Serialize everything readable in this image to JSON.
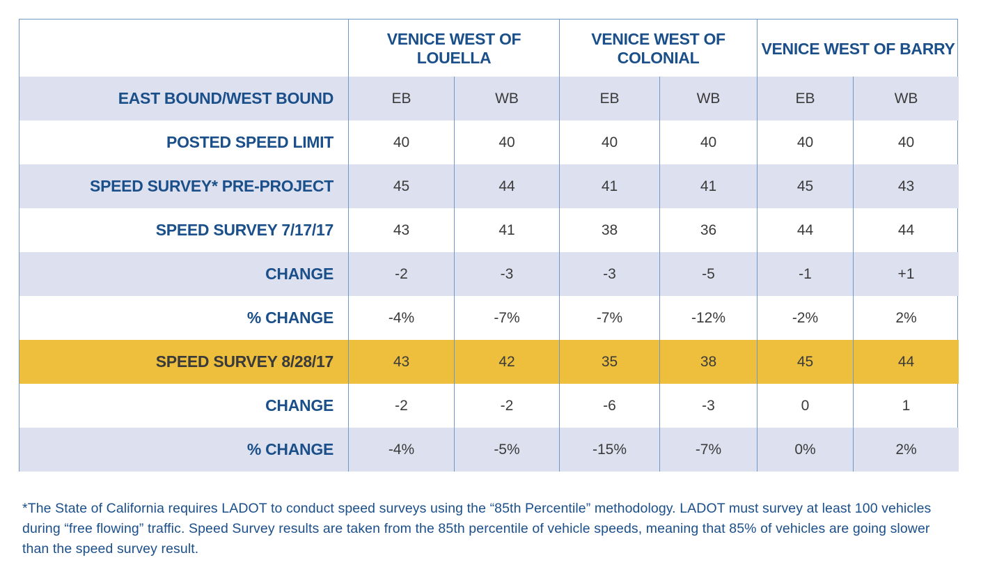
{
  "chart_data": {
    "type": "table",
    "title": "",
    "groups": [
      "VENICE WEST OF LOUELLA",
      "VENICE WEST OF COLONIAL",
      "VENICE WEST OF BARRY"
    ],
    "rows": [
      {
        "label": "EAST BOUND/WEST BOUND",
        "values": [
          "EB",
          "WB",
          "EB",
          "WB",
          "EB",
          "WB"
        ],
        "shade": "light"
      },
      {
        "label": "POSTED SPEED LIMIT",
        "values": [
          "40",
          "40",
          "40",
          "40",
          "40",
          "40"
        ],
        "shade": "none"
      },
      {
        "label": "SPEED SURVEY* PRE-PROJECT",
        "values": [
          "45",
          "44",
          "41",
          "41",
          "45",
          "43"
        ],
        "shade": "light"
      },
      {
        "label": "SPEED SURVEY 7/17/17",
        "values": [
          "43",
          "41",
          "38",
          "36",
          "44",
          "44"
        ],
        "shade": "none"
      },
      {
        "label": "CHANGE",
        "values": [
          "-2",
          "-3",
          "-3",
          "-5",
          "-1",
          "+1"
        ],
        "shade": "light"
      },
      {
        "label": "% CHANGE",
        "values": [
          "-4%",
          "-7%",
          "-7%",
          "-12%",
          "-2%",
          "2%"
        ],
        "shade": "none"
      },
      {
        "label": "SPEED SURVEY 8/28/17",
        "values": [
          "43",
          "42",
          "35",
          "38",
          "45",
          "44"
        ],
        "shade": "gold"
      },
      {
        "label": "CHANGE",
        "values": [
          "-2",
          "-2",
          "-6",
          "-3",
          "0",
          "1"
        ],
        "shade": "none"
      },
      {
        "label": "% CHANGE",
        "values": [
          "-4%",
          "-5%",
          "-15%",
          "-7%",
          "0%",
          "2%"
        ],
        "shade": "light"
      }
    ]
  },
  "footnote": "*The State of California requires LADOT to conduct speed surveys using the “85th Percentile” methodology. LADOT must survey at least 100 vehicles during “free flowing” traffic. Speed Survey results are taken from the 85th percentile of vehicle speeds, meaning that 85% of vehicles are going slower than the speed survey result.",
  "colors": {
    "label_blue": "#1b4f8a",
    "light_row": "#dde1ef",
    "highlight_row": "#eebf3c",
    "border": "#6d98c8"
  }
}
